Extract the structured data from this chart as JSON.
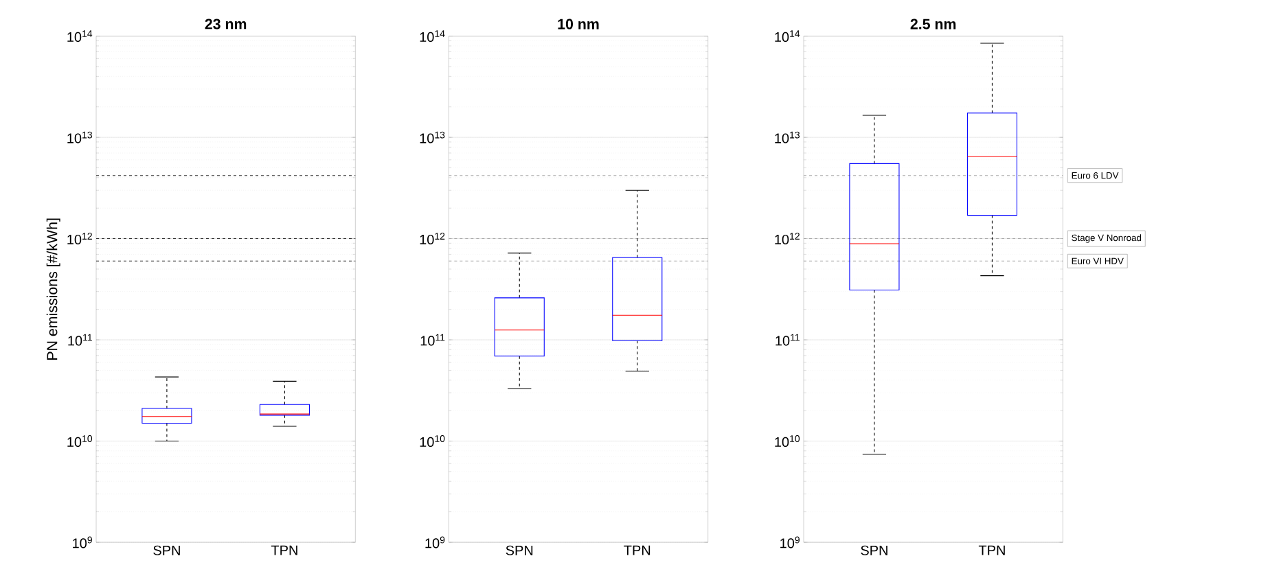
{
  "chart_data": [
    {
      "type": "box",
      "title": "23 nm",
      "ylabel": "PN emissions [#/kWh]",
      "categories": [
        "SPN",
        "TPN"
      ],
      "color": "#0000ff",
      "log": true,
      "grid": "y",
      "ylim": [
        1000000000.0,
        100000000000000.0
      ],
      "yticks": [
        {
          "value": 1000000000.0,
          "label": "10$^{9}$"
        },
        {
          "value": 10000000000.0,
          "label": "10$^{10}$"
        },
        {
          "value": 100000000000.0,
          "label": "10$^{11}$"
        },
        {
          "value": 1000000000000.0,
          "label": "10$^{12}$"
        },
        {
          "value": 10000000000000.0,
          "label": "10$^{13}$"
        },
        {
          "value": 100000000000000.0,
          "label": "10$^{14}$"
        }
      ],
      "boxes": [
        {
          "low": 10000000000.0,
          "q1": 15000000000.0,
          "median": 17500000000.0,
          "q3": 21000000000.0,
          "high": 43000000000.0
        },
        {
          "low": 14000000000.0,
          "q1": 18000000000.0,
          "median": 18500000000.0,
          "q3": 23000000000.0,
          "high": 39000000000.0
        }
      ],
      "ref_lines": [
        {
          "axis": "y",
          "value": 4200000000000.0,
          "color": "#333333",
          "line_style": "dashed"
        },
        {
          "axis": "y",
          "value": 1000000000000.0,
          "color": "#333333",
          "line_style": "dashed"
        },
        {
          "axis": "y",
          "value": 600000000000.0,
          "color": "#333333",
          "line_style": "dashed"
        }
      ]
    },
    {
      "type": "box",
      "title": "10 nm",
      "categories": [
        "SPN",
        "TPN"
      ],
      "color": "#0000ff",
      "log": true,
      "grid": "y",
      "ylim": [
        1000000000.0,
        100000000000000.0
      ],
      "yticks": [
        {
          "value": 1000000000.0,
          "label": "10$^{9}$"
        },
        {
          "value": 10000000000.0,
          "label": "10$^{10}$"
        },
        {
          "value": 100000000000.0,
          "label": "10$^{11}$"
        },
        {
          "value": 1000000000000.0,
          "label": "10$^{12}$"
        },
        {
          "value": 10000000000000.0,
          "label": "10$^{13}$"
        },
        {
          "value": 100000000000000.0,
          "label": "10$^{14}$"
        }
      ],
      "boxes": [
        {
          "low": 33000000000.0,
          "q1": 69000000000.0,
          "median": 125000000000.0,
          "q3": 260000000000.0,
          "high": 720000000000.0
        },
        {
          "low": 49000000000.0,
          "q1": 98000000000.0,
          "median": 175000000000.0,
          "q3": 650000000000.0,
          "high": 3000000000000.0
        }
      ],
      "ref_lines": [
        {
          "axis": "y",
          "value": 4200000000000.0,
          "color": "#aaaaaa",
          "line_style": "dashed"
        },
        {
          "axis": "y",
          "value": 1000000000000.0,
          "color": "#aaaaaa",
          "line_style": "dashed"
        },
        {
          "axis": "y",
          "value": 600000000000.0,
          "color": "#aaaaaa",
          "line_style": "dashed"
        }
      ]
    },
    {
      "type": "box",
      "title": "2.5 nm",
      "categories": [
        "SPN",
        "TPN"
      ],
      "color": "#0000ff",
      "log": true,
      "grid": "y",
      "ylim": [
        1000000000.0,
        100000000000000.0
      ],
      "yticks": [
        {
          "value": 1000000000.0,
          "label": "10$^{9}$"
        },
        {
          "value": 10000000000.0,
          "label": "10$^{10}$"
        },
        {
          "value": 100000000000.0,
          "label": "10$^{11}$"
        },
        {
          "value": 1000000000000.0,
          "label": "10$^{12}$"
        },
        {
          "value": 10000000000000.0,
          "label": "10$^{13}$"
        },
        {
          "value": 100000000000000.0,
          "label": "10$^{14}$"
        }
      ],
      "boxes": [
        {
          "low": 7400000000.0,
          "q1": 310000000000.0,
          "median": 890000000000.0,
          "q3": 5500000000000.0,
          "high": 16500000000000.0
        },
        {
          "low": 430000000000.0,
          "q1": 1700000000000.0,
          "median": 6500000000000.0,
          "q3": 17400000000000.0,
          "high": 85000000000000.0
        }
      ],
      "ref_lines": [
        {
          "axis": "y",
          "value": 4200000000000.0,
          "color": "#aaaaaa",
          "line_style": "dashed",
          "label": "Euro 6 LDV"
        },
        {
          "axis": "y",
          "value": 1000000000000.0,
          "color": "#aaaaaa",
          "line_style": "dashed",
          "label": "Stage V Nonroad"
        },
        {
          "axis": "y",
          "value": 600000000000.0,
          "color": "#aaaaaa",
          "line_style": "dashed",
          "label": "Euro VI HDV"
        }
      ]
    }
  ]
}
